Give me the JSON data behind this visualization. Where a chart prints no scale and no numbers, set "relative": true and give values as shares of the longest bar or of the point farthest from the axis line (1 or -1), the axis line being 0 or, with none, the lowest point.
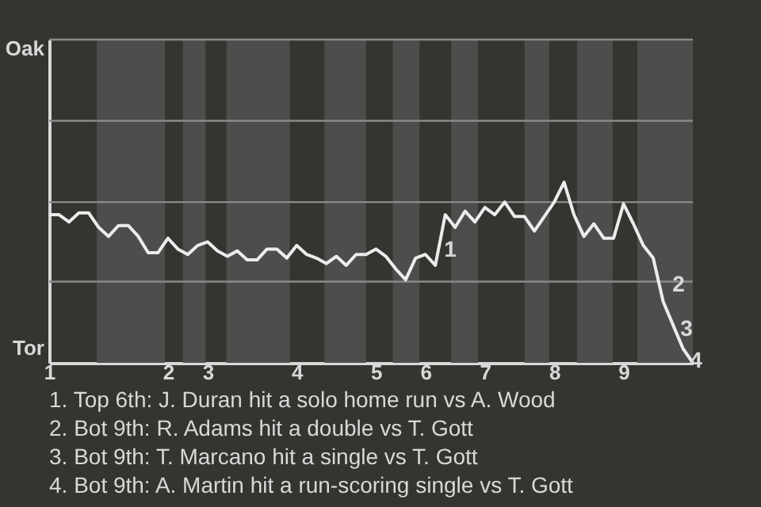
{
  "chart_data": {
    "type": "line",
    "relative": true,
    "categories": [
      "1",
      null,
      null,
      null,
      null,
      null,
      null,
      null,
      null,
      null,
      null,
      null,
      "2",
      null,
      null,
      null,
      "3",
      null,
      null,
      null,
      null,
      null,
      null,
      null,
      null,
      "4",
      null,
      null,
      null,
      null,
      null,
      null,
      null,
      "5",
      null,
      null,
      null,
      null,
      "6",
      null,
      null,
      null,
      null,
      null,
      "7",
      null,
      null,
      null,
      null,
      null,
      null,
      "8",
      null,
      null,
      null,
      null,
      null,
      null,
      "9",
      null,
      null,
      null,
      null,
      null,
      null,
      null
    ],
    "series": [
      {
        "color": "#ececec",
        "values": [
          0.82,
          0.82,
          0.78,
          0.83,
          0.83,
          0.75,
          0.7,
          0.76,
          0.76,
          0.7,
          0.61,
          0.61,
          0.69,
          0.63,
          0.6,
          0.65,
          0.67,
          0.62,
          0.59,
          0.62,
          0.57,
          0.57,
          0.63,
          0.63,
          0.58,
          0.65,
          0.6,
          0.58,
          0.55,
          0.59,
          0.54,
          0.6,
          0.6,
          0.63,
          0.59,
          0.52,
          0.46,
          0.58,
          0.6,
          0.54,
          0.82,
          0.75,
          0.84,
          0.78,
          0.86,
          0.82,
          0.89,
          0.81,
          0.81,
          0.73,
          0.81,
          0.89,
          1,
          0.82,
          0.7,
          0.77,
          0.69,
          0.69,
          0.88,
          0.77,
          0.65,
          0.58,
          0.34,
          0.21,
          0.08,
          0
        ]
      }
    ],
    "marker": "none",
    "line_style": "solid",
    "ref_lines": [
      {
        "axis": "y",
        "value": 0.45,
        "color": "#8a8a8a"
      },
      {
        "axis": "y",
        "value": 0.89,
        "color": "#8a8a8a"
      },
      {
        "axis": "y",
        "value": 1.34,
        "color": "#8a8a8a"
      },
      {
        "axis": "y",
        "value": 1.79,
        "color": "#8a8a8a"
      }
    ],
    "annotations": [
      "Oak",
      "Tor",
      "1",
      "2",
      "3",
      "4",
      "1. Top 6th: J. Duran hit a solo home run vs A. Wood",
      "2. Bot 9th: R. Adams hit a double vs T. Gott",
      "3. Bot 9th: T. Marcano hit a single vs T. Gott",
      "4. Bot 9th: A. Martin hit a run-scoring single vs T. Gott"
    ]
  }
}
